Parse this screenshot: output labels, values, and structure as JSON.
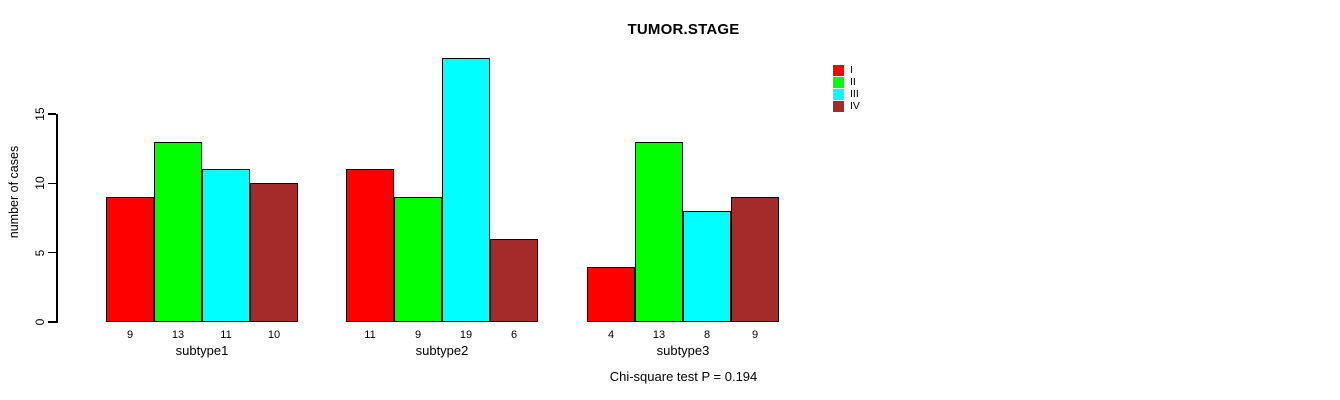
{
  "page": {
    "background": "#ffffff"
  },
  "chart_data": {
    "type": "bar",
    "title": "TUMOR.STAGE",
    "xlabel": "",
    "ylabel": "number of cases",
    "categories": [
      "subtype1",
      "subtype2",
      "subtype3"
    ],
    "series": [
      {
        "name": "I",
        "color": "#FF0000",
        "values": [
          9,
          11,
          4
        ]
      },
      {
        "name": "II",
        "color": "#00FF00",
        "values": [
          13,
          9,
          13
        ]
      },
      {
        "name": "III",
        "color": "#00FFFF",
        "values": [
          11,
          19,
          8
        ]
      },
      {
        "name": "IV",
        "color": "#A52A2A",
        "values": [
          10,
          6,
          9
        ]
      }
    ],
    "bar_value_labels": [
      [
        9,
        13,
        11,
        10
      ],
      [
        11,
        9,
        19,
        6
      ],
      [
        4,
        13,
        8,
        9
      ]
    ],
    "yticks": [
      0,
      5,
      10,
      15
    ],
    "ylim": [
      0,
      15
    ],
    "grid": false,
    "bar_border_color": "#000000",
    "legend": {
      "position": "top-right",
      "entries": [
        {
          "label": "I",
          "color": "#FF0000"
        },
        {
          "label": "II",
          "color": "#00FF00"
        },
        {
          "label": "III",
          "color": "#00FFFF"
        },
        {
          "label": "IV",
          "color": "#A52A2A"
        }
      ]
    }
  },
  "footer": {
    "caption": "Chi-square test P = 0.194"
  }
}
